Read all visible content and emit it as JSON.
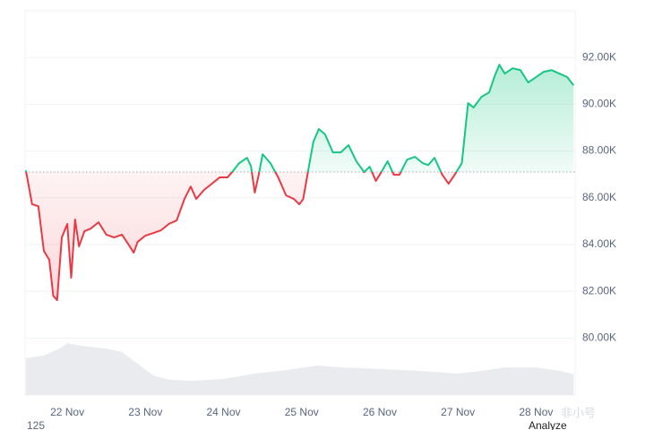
{
  "chart_data": {
    "type": "baseline",
    "baseline": 87100,
    "xlim": [
      21.46,
      28.5
    ],
    "xticks": [
      {
        "value": 22,
        "label": "22 Nov"
      },
      {
        "value": 23,
        "label": "23 Nov"
      },
      {
        "value": 24,
        "label": "24 Nov"
      },
      {
        "value": 25,
        "label": "25 Nov"
      },
      {
        "value": 26,
        "label": "26 Nov"
      },
      {
        "value": 27,
        "label": "27 Nov"
      },
      {
        "value": 28,
        "label": "28 Nov"
      }
    ],
    "ylim": [
      77560,
      94000
    ],
    "yticks": [
      {
        "value": 80000,
        "label": "80.00K"
      },
      {
        "value": 82000,
        "label": "82.00K"
      },
      {
        "value": 84000,
        "label": "84.00K"
      },
      {
        "value": 86000,
        "label": "86.00K"
      },
      {
        "value": 88000,
        "label": "88.00K"
      },
      {
        "value": 90000,
        "label": "90.00K"
      },
      {
        "value": 92000,
        "label": "92.00K"
      }
    ],
    "y2lim": [
      0,
      100
    ],
    "grid": true,
    "series": [
      {
        "color_above": "#16c784",
        "color_below": "#ea3943",
        "x": [
          21.47,
          21.55,
          21.63,
          21.7,
          21.77,
          21.82,
          21.87,
          21.93,
          22.0,
          22.05,
          22.1,
          22.15,
          22.22,
          22.3,
          22.4,
          22.5,
          22.6,
          22.7,
          22.8,
          22.85,
          22.9,
          23.0,
          23.1,
          23.2,
          23.3,
          23.4,
          23.5,
          23.58,
          23.65,
          23.75,
          23.85,
          23.95,
          24.05,
          24.1,
          24.2,
          24.3,
          24.35,
          24.4,
          24.45,
          24.5,
          24.6,
          24.7,
          24.8,
          24.9,
          24.97,
          25.02,
          25.08,
          25.15,
          25.22,
          25.3,
          25.4,
          25.5,
          25.6,
          25.7,
          25.8,
          25.87,
          25.95,
          26.02,
          26.1,
          26.18,
          26.25,
          26.35,
          26.45,
          26.55,
          26.62,
          26.7,
          26.8,
          26.88,
          26.95,
          27.05,
          27.1,
          27.13,
          27.2,
          27.3,
          27.4,
          27.47,
          27.53,
          27.6,
          27.7,
          27.8,
          27.9,
          28.0,
          28.1,
          28.2,
          28.3,
          28.4,
          28.48
        ],
        "values": [
          87170,
          85720,
          85640,
          83730,
          83340,
          81810,
          81620,
          84300,
          84880,
          82580,
          85070,
          83920,
          84570,
          84680,
          84950,
          84420,
          84300,
          84420,
          83920,
          83650,
          84110,
          84380,
          84490,
          84610,
          84880,
          85030,
          85950,
          86480,
          85950,
          86330,
          86600,
          86870,
          86870,
          87060,
          87480,
          87710,
          87370,
          86220,
          86980,
          87860,
          87480,
          86870,
          86100,
          85950,
          85720,
          85950,
          87100,
          88400,
          88940,
          88710,
          87940,
          87940,
          88250,
          87560,
          87100,
          87330,
          86720,
          87100,
          87560,
          86980,
          86980,
          87630,
          87750,
          87480,
          87400,
          87710,
          86980,
          86600,
          86940,
          87480,
          89090,
          90050,
          89860,
          90310,
          90510,
          91200,
          91690,
          91310,
          91540,
          91460,
          90930,
          91160,
          91390,
          91460,
          91310,
          91160,
          90810
        ]
      },
      {
        "axis": "y2",
        "color": "#e9ebee",
        "x": [
          21.47,
          21.7,
          21.9,
          22.0,
          22.2,
          22.5,
          22.7,
          22.9,
          23.1,
          23.3,
          23.6,
          24.0,
          24.4,
          24.8,
          25.2,
          25.5,
          26.0,
          26.5,
          27.0,
          27.3,
          27.6,
          28.0,
          28.3,
          28.48
        ],
        "values": [
          9.6,
          10.3,
          12.1,
          13.5,
          12.8,
          12.1,
          11.2,
          8.2,
          5.1,
          4.0,
          3.7,
          4.2,
          5.6,
          6.5,
          7.7,
          7.2,
          6.8,
          6.3,
          5.6,
          6.3,
          7.2,
          7.2,
          6.3,
          5.4
        ]
      }
    ],
    "footer_left": "125",
    "footer_right": "Analyze",
    "watermark": "非小号"
  }
}
